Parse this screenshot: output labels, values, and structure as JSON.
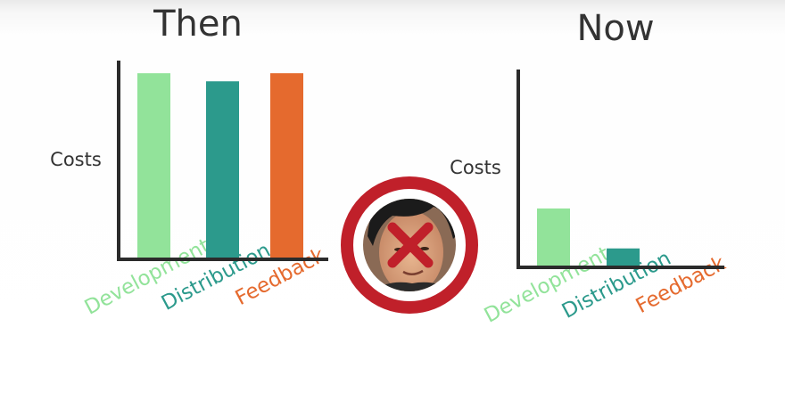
{
  "chart_data": [
    {
      "type": "bar",
      "title": "Then",
      "ylabel": "Costs",
      "xlabel": "",
      "categories": [
        "Development",
        "Distribution",
        "Feedback"
      ],
      "values": [
        92,
        88,
        92
      ],
      "ylim": [
        0,
        100
      ],
      "grid": false,
      "colors": [
        "#92e39a",
        "#2c9a8c",
        "#e56a2e"
      ]
    },
    {
      "type": "bar",
      "title": "Now",
      "ylabel": "Costs",
      "xlabel": "",
      "categories": [
        "Development",
        "Distribution",
        "Feedback"
      ],
      "values": [
        28,
        9,
        0
      ],
      "ylim": [
        0,
        100
      ],
      "grid": false,
      "colors": [
        "#92e39a",
        "#2c9a8c",
        "#e56a2e"
      ]
    }
  ],
  "badge": {
    "icon": "crossed-out-portrait-icon",
    "ring_color": "#c0202a",
    "cross_color": "#c0202a"
  }
}
